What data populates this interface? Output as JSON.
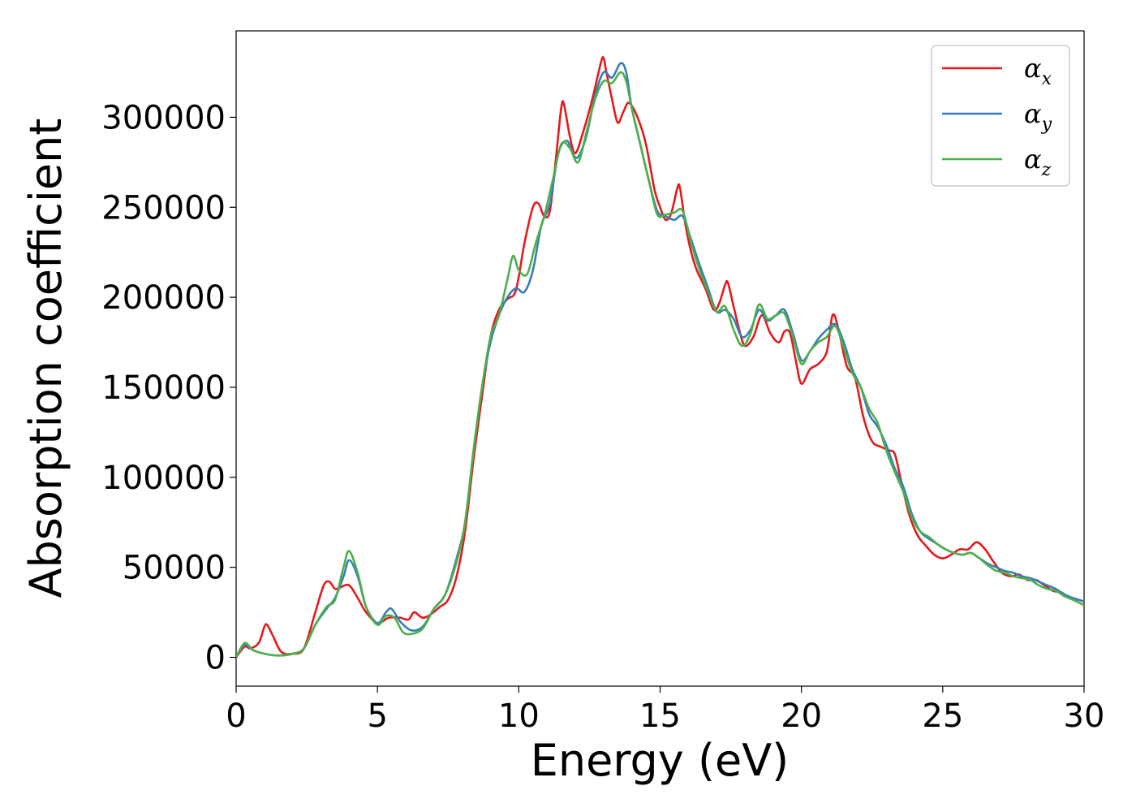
{
  "chart_data": {
    "type": "line",
    "xlabel": "Energy (eV)",
    "ylabel": "Absorption coefficient",
    "xlim": [
      0,
      30
    ],
    "ylim": [
      -16000,
      348000
    ],
    "xticks": [
      0,
      5,
      10,
      15,
      20,
      25,
      30
    ],
    "xtick_labels": [
      "0",
      "5",
      "10",
      "15",
      "20",
      "25",
      "30"
    ],
    "yticks": [
      0,
      50000,
      100000,
      150000,
      200000,
      250000,
      300000
    ],
    "ytick_labels": [
      "0",
      "50000",
      "100000",
      "150000",
      "200000",
      "250000",
      "300000"
    ],
    "grid": false,
    "legend_position": "top-right",
    "series": [
      {
        "name": "α_x",
        "symbol": "α",
        "subscript": "x",
        "color": "#e41a1c",
        "x": [
          0,
          0.3,
          0.5,
          0.8,
          1.0,
          1.1,
          1.3,
          1.6,
          2.0,
          2.4,
          2.8,
          3.1,
          3.3,
          3.5,
          3.7,
          4.0,
          4.3,
          4.6,
          5.0,
          5.4,
          5.8,
          6.1,
          6.3,
          6.6,
          6.9,
          7.2,
          7.5,
          7.8,
          8.1,
          8.4,
          8.7,
          9.0,
          9.3,
          9.6,
          9.9,
          10.2,
          10.5,
          10.7,
          10.9,
          11.1,
          11.3,
          11.5,
          11.6,
          11.8,
          12.0,
          12.3,
          12.6,
          12.9,
          13.0,
          13.1,
          13.3,
          13.5,
          13.7,
          13.9,
          14.2,
          14.5,
          14.8,
          15.0,
          15.2,
          15.4,
          15.6,
          15.7,
          15.9,
          16.1,
          16.3,
          16.6,
          16.9,
          17.1,
          17.3,
          17.4,
          17.6,
          17.8,
          18.0,
          18.3,
          18.6,
          18.9,
          19.2,
          19.4,
          19.6,
          19.8,
          20.0,
          20.3,
          20.6,
          20.9,
          21.1,
          21.3,
          21.6,
          21.9,
          22.2,
          22.5,
          22.8,
          23.1,
          23.3,
          23.5,
          23.8,
          24.1,
          24.4,
          24.7,
          25.0,
          25.3,
          25.6,
          25.9,
          26.2,
          26.5,
          26.8,
          27.1,
          27.4,
          27.7,
          28.0,
          28.3,
          28.6,
          28.9,
          29.2,
          29.5,
          29.8,
          30.0
        ],
        "y": [
          0,
          6000,
          5000,
          8000,
          17000,
          18000,
          12000,
          3000,
          2000,
          5000,
          25000,
          40000,
          42000,
          38000,
          39000,
          40000,
          33000,
          25000,
          19000,
          22000,
          22000,
          21000,
          25000,
          22000,
          24000,
          28000,
          32000,
          45000,
          70000,
          110000,
          145000,
          178000,
          193000,
          199000,
          204000,
          230000,
          250000,
          252000,
          245000,
          248000,
          275000,
          305000,
          307000,
          290000,
          280000,
          293000,
          310000,
          330000,
          333000,
          325000,
          310000,
          297000,
          303000,
          308000,
          300000,
          285000,
          260000,
          250000,
          243000,
          247000,
          260000,
          261000,
          240000,
          225000,
          215000,
          205000,
          193000,
          197000,
          207000,
          208000,
          195000,
          182000,
          173000,
          178000,
          190000,
          180000,
          175000,
          181000,
          180000,
          165000,
          152000,
          160000,
          163000,
          170000,
          190000,
          183000,
          162000,
          155000,
          133000,
          120000,
          117000,
          115000,
          113000,
          100000,
          80000,
          68000,
          62000,
          57000,
          55000,
          57000,
          60000,
          60000,
          64000,
          60000,
          53000,
          47000,
          45000,
          46000,
          43000,
          43000,
          40000,
          37000,
          36000,
          33000,
          32000,
          31000
        ]
      },
      {
        "name": "α_y",
        "symbol": "α",
        "subscript": "y",
        "color": "#377eb8",
        "x": [
          0,
          0.3,
          0.6,
          1.0,
          1.5,
          2.0,
          2.4,
          2.8,
          3.2,
          3.5,
          3.8,
          4.0,
          4.3,
          4.6,
          5.0,
          5.3,
          5.5,
          5.8,
          6.2,
          6.6,
          7.0,
          7.4,
          7.8,
          8.1,
          8.4,
          8.7,
          9.0,
          9.3,
          9.6,
          9.9,
          10.2,
          10.5,
          10.8,
          11.1,
          11.4,
          11.7,
          11.9,
          12.1,
          12.4,
          12.7,
          13.0,
          13.3,
          13.6,
          13.8,
          14.0,
          14.3,
          14.6,
          14.9,
          15.2,
          15.5,
          15.8,
          16.1,
          16.4,
          16.7,
          17.0,
          17.3,
          17.6,
          17.9,
          18.2,
          18.5,
          18.8,
          19.1,
          19.4,
          19.7,
          20.0,
          20.3,
          20.6,
          20.9,
          21.2,
          21.5,
          21.8,
          22.1,
          22.4,
          22.7,
          23.0,
          23.3,
          23.6,
          23.9,
          24.2,
          24.5,
          24.8,
          25.1,
          25.4,
          25.7,
          26.0,
          26.3,
          26.6,
          26.9,
          27.2,
          27.5,
          27.8,
          28.1,
          28.4,
          28.7,
          29.0,
          29.3,
          29.6,
          30.0
        ],
        "y": [
          0,
          7000,
          4000,
          2000,
          1000,
          2000,
          5000,
          18000,
          27000,
          33000,
          45000,
          54000,
          45000,
          28000,
          19000,
          25000,
          27000,
          20000,
          15000,
          17000,
          27000,
          35000,
          55000,
          75000,
          115000,
          150000,
          175000,
          190000,
          200000,
          205000,
          203000,
          215000,
          240000,
          252000,
          280000,
          287000,
          280000,
          278000,
          290000,
          312000,
          325000,
          322000,
          330000,
          325000,
          305000,
          285000,
          265000,
          248000,
          245000,
          243000,
          245000,
          232000,
          218000,
          205000,
          192000,
          193000,
          188000,
          178000,
          182000,
          193000,
          187000,
          190000,
          193000,
          180000,
          165000,
          170000,
          177000,
          182000,
          185000,
          175000,
          160000,
          150000,
          135000,
          128000,
          118000,
          105000,
          95000,
          80000,
          70000,
          66000,
          63000,
          60000,
          58000,
          57000,
          58000,
          55000,
          52000,
          50000,
          48000,
          47000,
          45000,
          44000,
          42000,
          40000,
          38000,
          35000,
          33000,
          31000
        ]
      },
      {
        "name": "α_z",
        "symbol": "α",
        "subscript": "z",
        "color": "#4daf4a",
        "x": [
          0,
          0.3,
          0.6,
          1.0,
          1.5,
          2.0,
          2.4,
          2.8,
          3.2,
          3.5,
          3.8,
          4.0,
          4.3,
          4.6,
          5.0,
          5.3,
          5.6,
          5.9,
          6.2,
          6.6,
          7.0,
          7.4,
          7.8,
          8.1,
          8.4,
          8.7,
          9.0,
          9.3,
          9.6,
          9.8,
          10.0,
          10.3,
          10.6,
          10.9,
          11.2,
          11.5,
          11.8,
          12.1,
          12.4,
          12.7,
          13.0,
          13.3,
          13.6,
          13.8,
          14.0,
          14.3,
          14.6,
          14.9,
          15.2,
          15.5,
          15.8,
          16.1,
          16.4,
          16.7,
          17.0,
          17.3,
          17.6,
          17.9,
          18.2,
          18.5,
          18.8,
          19.1,
          19.4,
          19.7,
          20.0,
          20.3,
          20.6,
          20.9,
          21.2,
          21.5,
          21.8,
          22.1,
          22.4,
          22.7,
          23.0,
          23.3,
          23.6,
          23.9,
          24.2,
          24.5,
          24.8,
          25.1,
          25.4,
          25.7,
          26.0,
          26.3,
          26.6,
          26.9,
          27.2,
          27.5,
          27.8,
          28.1,
          28.4,
          28.7,
          29.0,
          29.3,
          29.6,
          30.0
        ],
        "y": [
          0,
          8000,
          4000,
          2000,
          1000,
          2000,
          5000,
          18000,
          28000,
          32000,
          50000,
          59000,
          47000,
          28000,
          18000,
          23000,
          22000,
          14000,
          13000,
          16000,
          27000,
          35000,
          53000,
          75000,
          115000,
          150000,
          178000,
          190000,
          210000,
          223000,
          215000,
          213000,
          230000,
          245000,
          265000,
          285000,
          283000,
          275000,
          292000,
          310000,
          320000,
          319000,
          325000,
          320000,
          305000,
          285000,
          265000,
          246000,
          246000,
          247000,
          248000,
          230000,
          215000,
          203000,
          192000,
          195000,
          182000,
          173000,
          180000,
          196000,
          188000,
          190000,
          191000,
          178000,
          163000,
          170000,
          175000,
          178000,
          184000,
          172000,
          158000,
          150000,
          138000,
          130000,
          115000,
          103000,
          92000,
          78000,
          70000,
          67000,
          63000,
          60000,
          58000,
          57000,
          58000,
          55000,
          51000,
          48000,
          47000,
          45000,
          44000,
          43000,
          40000,
          38000,
          37000,
          34000,
          32000,
          29000
        ]
      }
    ]
  }
}
